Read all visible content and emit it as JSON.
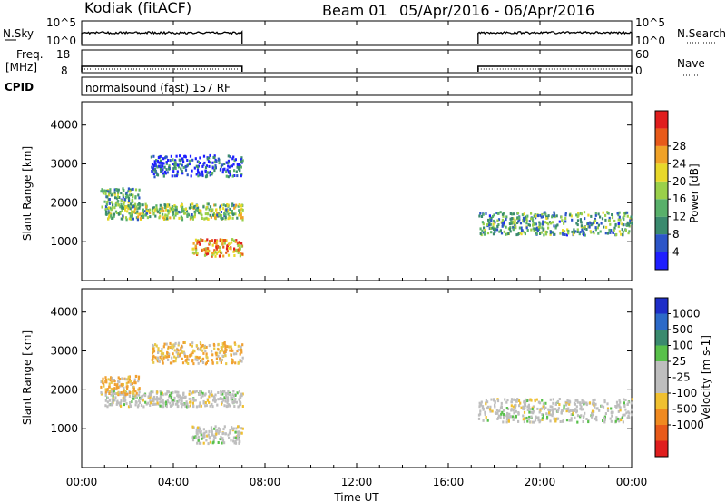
{
  "header": {
    "station": "Kodiak (fitACF)",
    "beam": "Beam 01",
    "daterange": "05/Apr/2016 - 06/Apr/2016"
  },
  "strips": {
    "nsky_label": "N.Sky",
    "nsky_ticks": [
      "10^5",
      "10^0"
    ],
    "nsearch_label": "N.Search",
    "nsearch_ticks": [
      "10^5",
      "10^0"
    ],
    "freq_label": "Freq.",
    "freq_unit": "[MHz]",
    "freq_ticks": [
      "18",
      "8"
    ],
    "nave_label": "Nave",
    "nave_ticks": [
      "60",
      "0"
    ],
    "cpid_label": "CPID",
    "cpid_text": "normalsound (fast) 157 RF"
  },
  "chart_data": [
    {
      "type": "heatmap",
      "name": "power",
      "ylabel": "Slant Range [km]",
      "yticks": [
        1000,
        2000,
        3000,
        4000
      ],
      "ylim": [
        0,
        4600
      ],
      "xlim": [
        0,
        24
      ],
      "colorbar_label": "Power [dB]",
      "colorbar_ticks": [
        "4",
        "8",
        "12",
        "16",
        "20",
        "24",
        "28"
      ],
      "colorbar_colors": [
        "#1f1fff",
        "#2c55c8",
        "#3a8a6e",
        "#58b06a",
        "#9ad04a",
        "#e8d82a",
        "#f0a228",
        "#e85a1a",
        "#e01e1e"
      ],
      "echo_regions": [
        {
          "t0": 1.0,
          "t1": 7.0,
          "r0": 1600,
          "r1": 2000,
          "level": 0.45
        },
        {
          "t0": 3.0,
          "t1": 7.0,
          "r0": 2700,
          "r1": 3250,
          "level": 0.15
        },
        {
          "t0": 4.8,
          "t1": 7.0,
          "r0": 650,
          "r1": 1100,
          "level": 0.7
        },
        {
          "t0": 17.3,
          "t1": 24.0,
          "r0": 1200,
          "r1": 1800,
          "level": 0.35
        },
        {
          "t0": 0.8,
          "t1": 2.5,
          "r0": 1900,
          "r1": 2400,
          "level": 0.35
        }
      ]
    },
    {
      "type": "heatmap",
      "name": "velocity",
      "ylabel": "Slant Range [km]",
      "yticks": [
        1000,
        2000,
        3000,
        4000
      ],
      "ylim": [
        0,
        4600
      ],
      "xlim": [
        0,
        24
      ],
      "colorbar_label": "Velocity [m s-1]",
      "colorbar_ticks": [
        "1000",
        "500",
        "100",
        "25",
        "-25",
        "-100",
        "-500",
        "-1000"
      ],
      "colorbar_colors": [
        "#1e2ec8",
        "#2c6ac8",
        "#3a8a6e",
        "#58c04a",
        "#bebebe",
        "#bebebe",
        "#f0c030",
        "#f08a20",
        "#e85a1a",
        "#e01e1e"
      ],
      "echo_regions": [
        {
          "t0": 1.0,
          "t1": 7.0,
          "r0": 1600,
          "r1": 2000,
          "level": "ground"
        },
        {
          "t0": 3.0,
          "t1": 7.0,
          "r0": 2700,
          "r1": 3250,
          "level": "neg"
        },
        {
          "t0": 4.8,
          "t1": 7.0,
          "r0": 650,
          "r1": 1100,
          "level": "ground"
        },
        {
          "t0": 17.3,
          "t1": 24.0,
          "r0": 1200,
          "r1": 1800,
          "level": "ground"
        },
        {
          "t0": 0.8,
          "t1": 2.5,
          "r0": 1900,
          "r1": 2400,
          "level": "neg"
        }
      ]
    }
  ],
  "xaxis": {
    "ticks": [
      "00:00",
      "04:00",
      "08:00",
      "12:00",
      "16:00",
      "20:00",
      "00:00"
    ],
    "label": "Time UT"
  }
}
